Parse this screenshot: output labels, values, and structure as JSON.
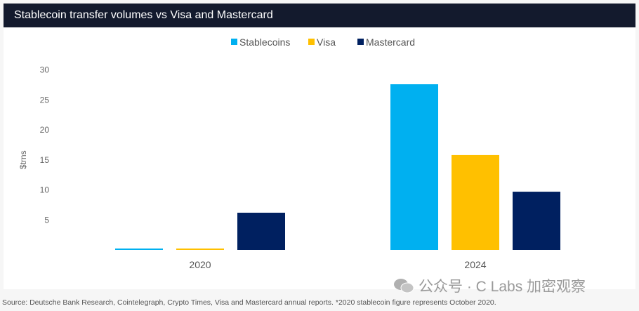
{
  "chart_data": {
    "type": "bar",
    "title": "Stablecoin transfer volumes vs Visa and Mastercard",
    "ylabel": "$trns",
    "xlabel": "",
    "ylim": [
      0,
      30
    ],
    "yticks": [
      5,
      10,
      15,
      20,
      25,
      30
    ],
    "categories": [
      "2020",
      "2024"
    ],
    "series": [
      {
        "name": "Stablecoins",
        "color": "#00b0f0",
        "values": [
          0.2,
          27.6
        ]
      },
      {
        "name": "Visa",
        "color": "#ffc000",
        "values": [
          0.2,
          15.8
        ]
      },
      {
        "name": "Mastercard",
        "color": "#002060",
        "values": [
          6.2,
          9.7
        ]
      }
    ],
    "legend": "top-center",
    "grid": false
  },
  "footer": "Source: Deutsche Bank Research, Cointelegraph, Crypto Times, Visa and Mastercard annual reports.  *2020 stablecoin figure represents October 2020.",
  "watermark": "公众号 · C Labs 加密观察"
}
